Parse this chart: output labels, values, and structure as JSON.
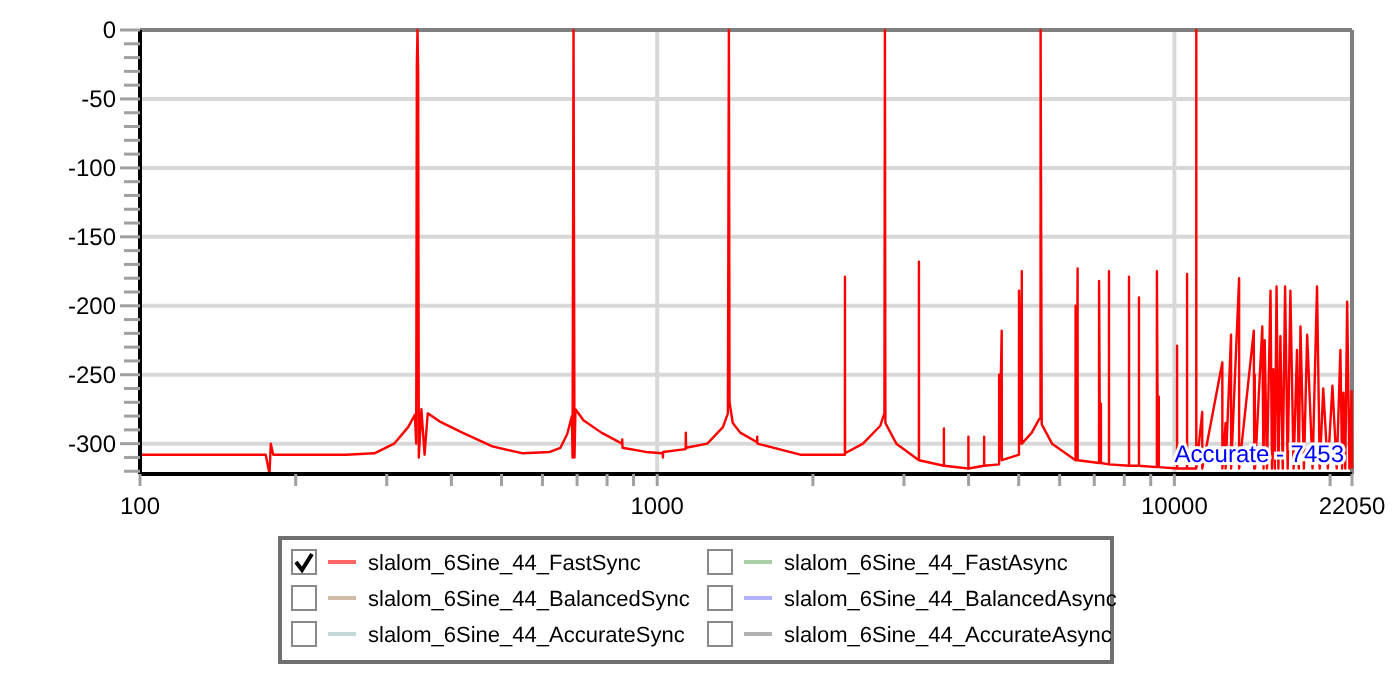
{
  "chart_data": {
    "type": "line",
    "annotations": [
      "Accurate - 7453"
    ],
    "xlim": [
      100,
      22050
    ],
    "xticks": [
      100,
      {
        "value": 200,
        "label": null
      },
      {
        "value": 300,
        "label": null
      },
      {
        "value": 400,
        "label": null
      },
      {
        "value": 500,
        "label": null
      },
      {
        "value": 600,
        "label": null
      },
      {
        "value": 700,
        "label": null
      },
      {
        "value": 800,
        "label": null
      },
      {
        "value": 900,
        "label": null
      },
      1000,
      {
        "value": 2000,
        "label": null
      },
      {
        "value": 3000,
        "label": null
      },
      {
        "value": 4000,
        "label": null
      },
      {
        "value": 5000,
        "label": null
      },
      {
        "value": 6000,
        "label": null
      },
      {
        "value": 7000,
        "label": null
      },
      {
        "value": 8000,
        "label": null
      },
      {
        "value": 9000,
        "label": null
      },
      10000,
      {
        "value": 20000,
        "label": null
      },
      22050
    ],
    "ylim": [
      -322,
      0
    ],
    "yticks": [
      0,
      {
        "value": -10,
        "label": null
      },
      {
        "value": -20,
        "label": null
      },
      {
        "value": -30,
        "label": null
      },
      {
        "value": -40,
        "label": null
      },
      -50,
      {
        "value": -60,
        "label": null
      },
      {
        "value": -70,
        "label": null
      },
      {
        "value": -80,
        "label": null
      },
      {
        "value": -90,
        "label": null
      },
      -100,
      {
        "value": -110,
        "label": null
      },
      {
        "value": -120,
        "label": null
      },
      {
        "value": -130,
        "label": null
      },
      {
        "value": -140,
        "label": null
      },
      -150,
      {
        "value": -160,
        "label": null
      },
      {
        "value": -170,
        "label": null
      },
      {
        "value": -180,
        "label": null
      },
      {
        "value": -190,
        "label": null
      },
      -200,
      {
        "value": -210,
        "label": null
      },
      {
        "value": -220,
        "label": null
      },
      {
        "value": -230,
        "label": null
      },
      {
        "value": -240,
        "label": null
      },
      -250,
      {
        "value": -260,
        "label": null
      },
      {
        "value": -270,
        "label": null
      },
      {
        "value": -280,
        "label": null
      },
      {
        "value": -290,
        "label": null
      },
      -300,
      {
        "value": -310,
        "label": null
      },
      {
        "value": -320,
        "label": null
      }
    ],
    "log": "x",
    "grid": true,
    "legend": "bottom",
    "x": [
      100,
      175,
      178,
      179,
      181,
      250,
      284,
      310,
      330,
      340,
      342,
      343,
      344,
      345,
      346,
      350,
      355,
      360,
      380,
      420,
      480,
      550,
      620,
      650,
      670,
      684,
      686,
      689,
      692,
      695,
      720,
      780,
      855,
      856,
      857,
      950,
      1025,
      1026,
      1027,
      1135,
      1136,
      1137,
      1250,
      1340,
      1370,
      1376,
      1380,
      1400,
      1447,
      1560,
      1561,
      1562,
      1890,
      2200,
      2306,
      2307,
      2308,
      2500,
      2700,
      2750,
      2756,
      2762,
      2900,
      3206,
      3207,
      3208,
      3583,
      3584,
      3585,
      3996,
      3997,
      3998,
      4286,
      4287,
      4288,
      4582,
      4583,
      4585,
      4636,
      4638,
      5006,
      5007,
      5050,
      5070,
      5072,
      5300,
      5480,
      5510,
      5512,
      5540,
      5800,
      6440,
      6441,
      6470,
      6500,
      6502,
      7150,
      7151,
      7180,
      7210,
      7212,
      7473,
      7474,
      7476,
      8170,
      8171,
      8173,
      8540,
      8541,
      8543,
      9250,
      9251,
      9290,
      9330,
      9332,
      10120,
      10121,
      10123,
      10580,
      10581,
      10583,
      11023,
      11025,
      11027,
      11320,
      11322,
      12380,
      12382,
      12560,
      12562,
      12870,
      12872,
      13340,
      13342,
      14240,
      14270,
      14300,
      14320,
      14790,
      14870,
      14950,
      15100,
      15340,
      15440,
      15530,
      15640,
      15760,
      15890,
      16030,
      16200,
      16370,
      16560,
      16760,
      17000,
      17260,
      17400,
      17530,
      17800,
      18060,
      18500,
      18870,
      19100,
      19400,
      19800,
      20210,
      20600,
      20940,
      21100,
      21230,
      21400,
      21580,
      21800,
      22010,
      22050
    ],
    "series": [
      {
        "name": "slalom_6Sine_44_FastSync",
        "color": "#ff0000",
        "values": [
          -308,
          -308,
          -322,
          -300,
          -308,
          -308,
          -307,
          -300,
          -288,
          -279,
          -300,
          -25,
          0,
          -30,
          -310,
          -275,
          -308,
          -278,
          -284,
          -292,
          -302,
          -307,
          -306,
          -303,
          -293,
          -280,
          -310,
          0,
          -310,
          -275,
          -283,
          -292,
          -300,
          -297,
          -303,
          -306,
          -307,
          -310,
          -306,
          -304,
          -292,
          -303,
          -300,
          -288,
          -278,
          0,
          -270,
          -285,
          -292,
          -299,
          -295,
          -300,
          -308,
          -308,
          -308,
          -179,
          -307,
          -300,
          -287,
          -278,
          0,
          -285,
          -300,
          -312,
          -168,
          -312,
          -316,
          -289,
          -316,
          -318,
          -295,
          -318,
          -316,
          -295,
          -316,
          -315,
          -250,
          -312,
          -218,
          -312,
          -308,
          -189,
          -300,
          -175,
          -300,
          -292,
          -282,
          -282,
          0,
          -286,
          -300,
          -312,
          -200,
          -312,
          -173,
          -312,
          -314,
          -182,
          -314,
          -271,
          -314,
          -315,
          -175,
          -315,
          -316,
          -179,
          -316,
          -316,
          -194,
          -316,
          -317,
          -175,
          -317,
          -266,
          -317,
          -318,
          -229,
          -318,
          -318,
          -177,
          -318,
          -318,
          0,
          -318,
          -277,
          -318,
          -241,
          -318,
          -285,
          -318,
          -221,
          -318,
          -180,
          -318,
          -218,
          -318,
          -250,
          -318,
          -215,
          -318,
          -225,
          -318,
          -189,
          -318,
          -246,
          -318,
          -186,
          -318,
          -222,
          -318,
          -186,
          -318,
          -189,
          -318,
          -232,
          -318,
          -215,
          -318,
          -221,
          -318,
          -186,
          -318,
          -260,
          -318,
          -258,
          -318,
          -232,
          -318,
          -263,
          -318,
          -197,
          -318,
          -262,
          -318
        ]
      },
      {
        "name": "slalom_6Sine_44_BalancedSync",
        "color": "#b08f70",
        "values": [
          null,
          null,
          null,
          null,
          null,
          null,
          null,
          null,
          null,
          null,
          null,
          null,
          null,
          null,
          null,
          null,
          null,
          null,
          null,
          null,
          null,
          null,
          null,
          null,
          null,
          null,
          null,
          null,
          null,
          null,
          null,
          null,
          null,
          null,
          null,
          null,
          null,
          null,
          null,
          null,
          null,
          null,
          null,
          null,
          null,
          null,
          null,
          null,
          null,
          null,
          null,
          null,
          null,
          null,
          null,
          null,
          null,
          null,
          null,
          null,
          null,
          null,
          null,
          null,
          null,
          null,
          null,
          null,
          null,
          null,
          null,
          null,
          null,
          null,
          null,
          null,
          null,
          null,
          null,
          null,
          null,
          null,
          null,
          null,
          null,
          null,
          null,
          null,
          null,
          null,
          null,
          null,
          null,
          null,
          null,
          null,
          null,
          null,
          null,
          null,
          null,
          null,
          null,
          null,
          null,
          null,
          null,
          null,
          null,
          null,
          null,
          null,
          null,
          null,
          null,
          null,
          null,
          null,
          null,
          null,
          null,
          null,
          null,
          null,
          null,
          null,
          null,
          null,
          null,
          null,
          null,
          null,
          null,
          null,
          null,
          null,
          null,
          null,
          null,
          null,
          null,
          null,
          null,
          null,
          null,
          null,
          null,
          null,
          null,
          null,
          null,
          null,
          null,
          null,
          null,
          null,
          null,
          null,
          null,
          null,
          null,
          null,
          null,
          null,
          null,
          null,
          null,
          null,
          null,
          null,
          null,
          null,
          null,
          null
        ]
      },
      {
        "name": "slalom_6Sine_44_AccurateSync",
        "color": "#a0c0c0",
        "values": [
          null,
          null,
          null,
          null,
          null,
          null,
          null,
          null,
          null,
          null,
          null,
          null,
          null,
          null,
          null,
          null,
          null,
          null,
          null,
          null,
          null,
          null,
          null,
          null,
          null,
          null,
          null,
          null,
          null,
          null,
          null,
          null,
          null,
          null,
          null,
          null,
          null,
          null,
          null,
          null,
          null,
          null,
          null,
          null,
          null,
          null,
          null,
          null,
          null,
          null,
          null,
          null,
          null,
          null,
          null,
          null,
          null,
          null,
          null,
          null,
          null,
          null,
          null,
          null,
          null,
          null,
          null,
          null,
          null,
          null,
          null,
          null,
          null,
          null,
          null,
          null,
          null,
          null,
          null,
          null,
          null,
          null,
          null,
          null,
          null,
          null,
          null,
          null,
          null,
          null,
          null,
          null,
          null,
          null,
          null,
          null,
          null,
          null,
          null,
          null,
          null,
          null,
          null,
          null,
          null,
          null,
          null,
          null,
          null,
          null,
          null,
          null,
          null,
          null,
          null,
          null,
          null,
          null,
          null,
          null,
          null,
          null,
          null,
          null,
          null,
          null,
          null,
          null,
          null,
          null,
          null,
          null,
          null,
          null,
          null,
          null,
          null,
          null,
          null,
          null,
          null,
          null,
          null,
          null,
          null,
          null,
          null,
          null,
          null,
          null,
          null,
          null,
          null,
          null,
          null,
          null,
          null,
          null,
          null,
          null,
          null,
          null,
          null,
          null,
          null,
          null,
          null,
          null,
          null,
          null,
          null,
          null,
          null,
          null
        ]
      },
      {
        "name": "slalom_6Sine_44_FastAsync",
        "color": "#70b070",
        "values": [
          null,
          null,
          null,
          null,
          null,
          null,
          null,
          null,
          null,
          null,
          null,
          null,
          null,
          null,
          null,
          null,
          null,
          null,
          null,
          null,
          null,
          null,
          null,
          null,
          null,
          null,
          null,
          null,
          null,
          null,
          null,
          null,
          null,
          null,
          null,
          null,
          null,
          null,
          null,
          null,
          null,
          null,
          null,
          null,
          null,
          null,
          null,
          null,
          null,
          null,
          null,
          null,
          null,
          null,
          null,
          null,
          null,
          null,
          null,
          null,
          null,
          null,
          null,
          null,
          null,
          null,
          null,
          null,
          null,
          null,
          null,
          null,
          null,
          null,
          null,
          null,
          null,
          null,
          null,
          null,
          null,
          null,
          null,
          null,
          null,
          null,
          null,
          null,
          null,
          null,
          null,
          null,
          null,
          null,
          null,
          null,
          null,
          null,
          null,
          null,
          null,
          null,
          null,
          null,
          null,
          null,
          null,
          null,
          null,
          null,
          null,
          null,
          null,
          null,
          null,
          null,
          null,
          null,
          null,
          null,
          null,
          null,
          null,
          null,
          null,
          null,
          null,
          null,
          null,
          null,
          null,
          null,
          null,
          null,
          null,
          null,
          null,
          null,
          null,
          null,
          null,
          null,
          null,
          null,
          null,
          null,
          null,
          null,
          null,
          null,
          null,
          null,
          null,
          null,
          null,
          null,
          null,
          null,
          null,
          null,
          null,
          null,
          null,
          null,
          null,
          null,
          null,
          null,
          null,
          null,
          null,
          null,
          null,
          null
        ]
      },
      {
        "name": "slalom_6Sine_44_BalancedAsync",
        "color": "#7f7fff",
        "values": [
          null,
          null,
          null,
          null,
          null,
          null,
          null,
          null,
          null,
          null,
          null,
          null,
          null,
          null,
          null,
          null,
          null,
          null,
          null,
          null,
          null,
          null,
          null,
          null,
          null,
          null,
          null,
          null,
          null,
          null,
          null,
          null,
          null,
          null,
          null,
          null,
          null,
          null,
          null,
          null,
          null,
          null,
          null,
          null,
          null,
          null,
          null,
          null,
          null,
          null,
          null,
          null,
          null,
          null,
          null,
          null,
          null,
          null,
          null,
          null,
          null,
          null,
          null,
          null,
          null,
          null,
          null,
          null,
          null,
          null,
          null,
          null,
          null,
          null,
          null,
          null,
          null,
          null,
          null,
          null,
          null,
          null,
          null,
          null,
          null,
          null,
          null,
          null,
          null,
          null,
          null,
          null,
          null,
          null,
          null,
          null,
          null,
          null,
          null,
          null,
          null,
          null,
          null,
          null,
          null,
          null,
          null,
          null,
          null,
          null,
          null,
          null,
          null,
          null,
          null,
          null,
          null,
          null,
          null,
          null,
          null,
          null,
          null,
          null,
          null,
          null,
          null,
          null,
          null,
          null,
          null,
          null,
          null,
          null,
          null,
          null,
          null,
          null,
          null,
          null,
          null,
          null,
          null,
          null,
          null,
          null,
          null,
          null,
          null,
          null,
          null,
          null,
          null,
          null,
          null,
          null,
          null,
          null,
          null,
          null,
          null,
          null,
          null,
          null,
          null,
          null,
          null,
          null,
          null,
          null,
          null,
          null,
          null,
          null
        ]
      },
      {
        "name": "slalom_6Sine_44_AccurateAsync",
        "color": "#7f7f7f",
        "values": [
          null,
          null,
          null,
          null,
          null,
          null,
          null,
          null,
          null,
          null,
          null,
          null,
          null,
          null,
          null,
          null,
          null,
          null,
          null,
          null,
          null,
          null,
          null,
          null,
          null,
          null,
          null,
          null,
          null,
          null,
          null,
          null,
          null,
          null,
          null,
          null,
          null,
          null,
          null,
          null,
          null,
          null,
          null,
          null,
          null,
          null,
          null,
          null,
          null,
          null,
          null,
          null,
          null,
          null,
          null,
          null,
          null,
          null,
          null,
          null,
          null,
          null,
          null,
          null,
          null,
          null,
          null,
          null,
          null,
          null,
          null,
          null,
          null,
          null,
          null,
          null,
          null,
          null,
          null,
          null,
          null,
          null,
          null,
          null,
          null,
          null,
          null,
          null,
          null,
          null,
          null,
          null,
          null,
          null,
          null,
          null,
          null,
          null,
          null,
          null,
          null,
          null,
          null,
          null,
          null,
          null,
          null,
          null,
          null,
          null,
          null,
          null,
          null,
          null,
          null,
          null,
          null,
          null,
          null,
          null,
          null,
          null,
          null,
          null,
          null,
          null,
          null,
          null,
          null,
          null,
          null,
          null,
          null,
          null,
          null,
          null,
          null,
          null,
          null,
          null,
          null,
          null,
          null,
          null,
          null,
          null,
          null,
          null,
          null,
          null,
          null,
          null,
          null,
          null,
          null,
          null,
          null,
          null,
          null,
          null,
          null,
          null,
          null,
          null,
          null,
          null,
          null,
          null,
          null,
          null,
          null,
          null,
          null,
          null
        ]
      }
    ]
  }
}
